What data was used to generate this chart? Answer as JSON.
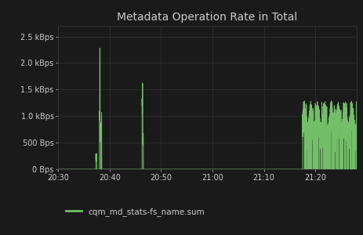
{
  "title": "Metadata Operation Rate in Total",
  "background_color": "#1a1a1a",
  "plot_background_color": "#1a1a1a",
  "grid_color": "#333333",
  "line_color": "#73bf69",
  "fill_color": "#73bf69",
  "text_color": "#cccccc",
  "legend_label": "cqm_md_stats-fs_name.sum",
  "yticks": [
    0,
    500,
    1000,
    1500,
    2000,
    2500
  ],
  "ytick_labels": [
    "0 Bps",
    "500 Bps",
    "1.0 kBps",
    "1.5 kBps",
    "2.0 kBps",
    "2.5 kBps"
  ],
  "xtick_labels": [
    "20:30",
    "20:40",
    "20:50",
    "21:00",
    "21:10",
    "21:20"
  ],
  "xtick_positions": [
    0,
    10,
    20,
    30,
    40,
    50
  ],
  "xlim": [
    0,
    58
  ],
  "ylim": [
    0,
    2700
  ],
  "title_fontsize": 10,
  "tick_fontsize": 7,
  "legend_fontsize": 7.5
}
